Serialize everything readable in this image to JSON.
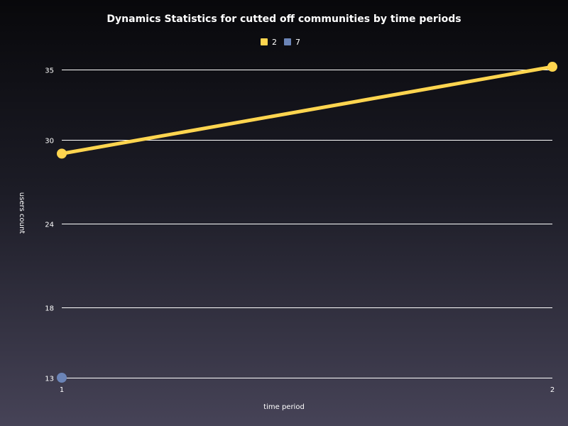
{
  "chart_data": {
    "type": "line",
    "title": "Dynamics Statistics for cutted off communities by time periods",
    "xlabel": "time period",
    "ylabel": "users count",
    "x": [
      1,
      2
    ],
    "x_ticks": [
      "1",
      "2"
    ],
    "y_ticks": [
      13,
      18,
      24,
      30,
      35
    ],
    "ylim": [
      13,
      35
    ],
    "grid": true,
    "legend_position": "top-center",
    "series": [
      {
        "name": "2",
        "color": "#ffd54f",
        "values": [
          29,
          35.2
        ]
      },
      {
        "name": "7",
        "color": "#6b84b7",
        "values": [
          13,
          null
        ]
      }
    ]
  }
}
